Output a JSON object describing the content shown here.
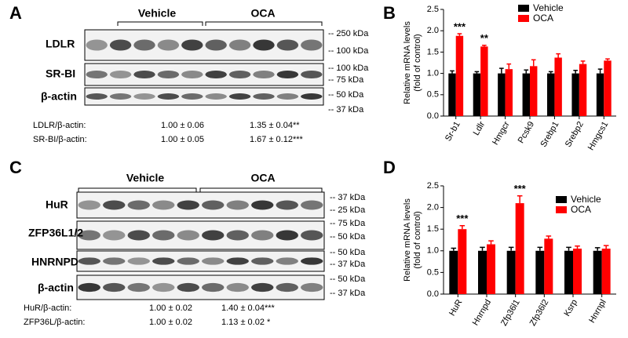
{
  "blot_panels": [
    {
      "label": "A",
      "groups": [
        "Vehicle",
        "OCA"
      ],
      "blots": [
        "LDLR",
        "SR-BI",
        "β-actin"
      ],
      "markers": [
        "-- 250 kDa",
        "-- 100 kDa",
        "-- 100 kDa",
        "-- 75 kDa",
        "-- 50 kDa",
        "-- 37 kDa"
      ],
      "quantification": [
        {
          "label": "LDLR/β-actin:",
          "vehicle": "1.00 ± 0.06",
          "oca": "1.35  ± 0.04**"
        },
        {
          "label": "SR-BI/β-actin:",
          "vehicle": "1.00 ± 0.05",
          "oca": "1.67  ± 0.12***"
        }
      ]
    },
    {
      "label": "C",
      "groups": [
        "Vehicle",
        "OCA"
      ],
      "blots": [
        "HuR",
        "ZFP36L1/2",
        "HNRNPD",
        "β-actin"
      ],
      "markers": [
        "-- 37 kDa",
        "-- 25 kDa",
        "-- 75 kDa",
        "-- 50 kDa",
        "-- 50 kDa",
        "-- 37 kDa",
        "-- 50 kDa",
        "-- 37 kDa"
      ],
      "quantification": [
        {
          "label": "HuR/β-actin:",
          "vehicle": "1.00 ± 0.02",
          "oca": "1.40 ± 0.04***"
        },
        {
          "label": "ZFP36L/β-actin:",
          "vehicle": "1.00 ± 0.02",
          "oca": "1.13 ± 0.02 *"
        }
      ]
    }
  ],
  "chart_data": [
    {
      "type": "bar",
      "panel": "B",
      "y_label": [
        "Relative mRNA levels",
        "(fold of control)"
      ],
      "categories": [
        "Sr-b1",
        "Ldlr",
        "Hmgcr",
        "Pcsk9",
        "Srebp1",
        "Srebp2",
        "Hmgcs1"
      ],
      "series": [
        {
          "name": "Vehicle",
          "color": "#000000",
          "values": [
            1.0,
            1.0,
            1.0,
            1.0,
            1.0,
            1.0,
            1.0
          ],
          "errors": [
            0.06,
            0.04,
            0.12,
            0.08,
            0.04,
            0.07,
            0.1
          ]
        },
        {
          "name": "OCA",
          "color": "#ff0000",
          "values": [
            1.88,
            1.63,
            1.1,
            1.17,
            1.37,
            1.22,
            1.3
          ],
          "errors": [
            0.05,
            0.03,
            0.12,
            0.15,
            0.09,
            0.07,
            0.04
          ]
        }
      ],
      "ylim": [
        0,
        2.5
      ],
      "yticks": [
        {
          "value": 0,
          "label": "0.0"
        },
        0.5,
        {
          "value": 1,
          "label": "1.0"
        },
        1.5,
        {
          "value": 2,
          "label": "2.0"
        },
        2.5
      ],
      "annotations": [
        {
          "text": "***",
          "category": "Sr-b1"
        },
        {
          "text": "**",
          "category": "Ldlr"
        }
      ],
      "legend": "top-right"
    },
    {
      "type": "bar",
      "panel": "D",
      "y_label": [
        "Relative mRNA levels",
        "(fold of control)"
      ],
      "categories": [
        "HuR",
        "Hnrnpd",
        "Zfp36l1",
        "Zfp36l2",
        "Ksrp",
        "Hnrnpl"
      ],
      "series": [
        {
          "name": "Vehicle",
          "color": "#000000",
          "values": [
            1.0,
            1.0,
            1.0,
            1.0,
            1.0,
            1.0
          ],
          "errors": [
            0.06,
            0.08,
            0.08,
            0.08,
            0.08,
            0.07
          ]
        },
        {
          "name": "OCA",
          "color": "#ff0000",
          "values": [
            1.5,
            1.15,
            2.1,
            1.28,
            1.05,
            1.05
          ],
          "errors": [
            0.08,
            0.08,
            0.17,
            0.06,
            0.06,
            0.07
          ]
        }
      ],
      "ylim": [
        0,
        2.5
      ],
      "yticks": [
        {
          "value": 0,
          "label": "0.0"
        },
        0.5,
        {
          "value": 1,
          "label": "1.0"
        },
        1.5,
        {
          "value": 2,
          "label": "2.0"
        },
        2.5
      ],
      "annotations": [
        {
          "text": "***",
          "category": "HuR"
        },
        {
          "text": "***",
          "category": "Zfp36l1"
        }
      ],
      "legend": "top-right"
    }
  ]
}
